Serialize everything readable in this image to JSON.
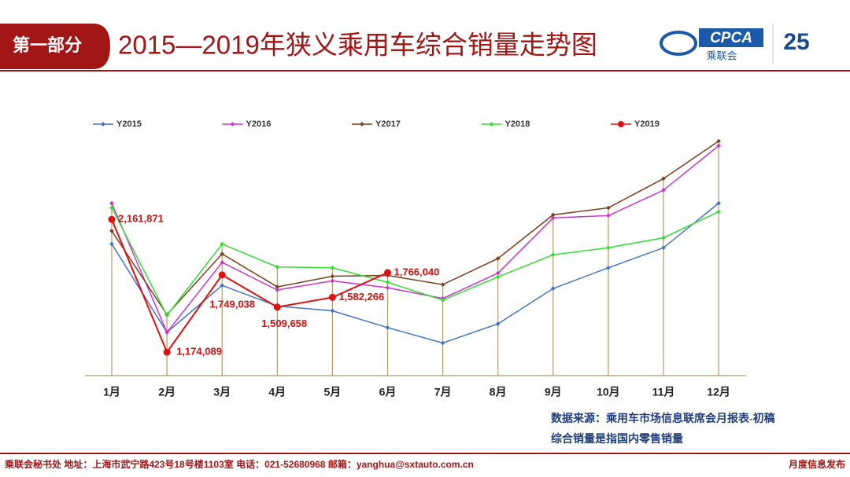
{
  "header": {
    "section": "第一部分",
    "logo_text": "CPCA",
    "logo_sub": "乘联会",
    "badge": "25"
  },
  "chart_data": {
    "type": "line",
    "title": "2015—2019年狭义乘用车综合销量走势图",
    "categories": [
      "1月",
      "2月",
      "3月",
      "4月",
      "5月",
      "6月",
      "7月",
      "8月",
      "9月",
      "10月",
      "11月",
      "12月"
    ],
    "ylim": [
      1000000,
      2800000
    ],
    "legend": "top",
    "series": [
      {
        "name": "Y2015",
        "color": "#4472c4",
        "values": [
          1979000,
          1322000,
          1671000,
          1517000,
          1482000,
          1357000,
          1243000,
          1385000,
          1648000,
          1802000,
          1951000,
          2282000
        ]
      },
      {
        "name": "Y2016",
        "color": "#cc33cc",
        "values": [
          2282000,
          1322000,
          1842000,
          1637000,
          1705000,
          1654000,
          1574000,
          1762000,
          2173000,
          2190000,
          2379000,
          2710000
        ]
      },
      {
        "name": "Y2017",
        "color": "#7b3f1e",
        "values": [
          2076000,
          1454000,
          1905000,
          1660000,
          1739000,
          1745000,
          1677000,
          1871000,
          2196000,
          2248000,
          2465000,
          2744000
        ]
      },
      {
        "name": "Y2018",
        "color": "#33dd33",
        "values": [
          2248000,
          1448000,
          1979000,
          1808000,
          1802000,
          1694000,
          1562000,
          1734000,
          1899000,
          1951000,
          2025000,
          2219000
        ]
      },
      {
        "name": "Y2019",
        "color": "#dd1111",
        "values": [
          2161871,
          1174089,
          1749038,
          1509658,
          1582266,
          1766040,
          null,
          null,
          null,
          null,
          null,
          null
        ],
        "value_labels": [
          "2,161,871",
          "1,174,089",
          "1,749,038",
          "1,509,658",
          "1,582,266",
          "1,766,040",
          null,
          null,
          null,
          null,
          null,
          null
        ]
      }
    ]
  },
  "notes": [
    "数据来源：乘用车市场信息联席会月报表-初稿",
    "综合销量是指国内零售销量"
  ],
  "footer": {
    "left": "乘联会秘书处   地址：上海市武宁路423号18号楼1103室  电话：021-52680968  邮箱：yanghua@sxtauto.com.cn",
    "right": "月度信息发布"
  }
}
